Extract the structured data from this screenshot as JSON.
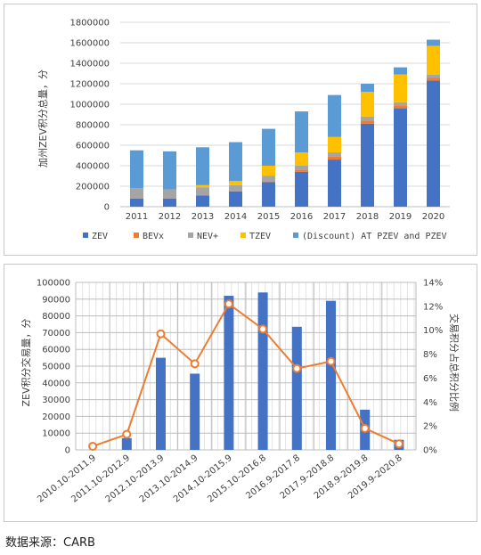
{
  "colors": {
    "zev": "#4472c4",
    "bevx": "#ed7d31",
    "nev": "#a5a5a5",
    "tzev": "#ffc000",
    "discount": "#5b9bd5",
    "trade_bar": "#4472c4",
    "trade_line": "#ed7d31",
    "grid": "#d9d9d9"
  },
  "chart_data": [
    {
      "type": "bar",
      "stacked": true,
      "ylabel": "加州ZEV积分总量，分",
      "categories": [
        "2011",
        "2012",
        "2013",
        "2014",
        "2015",
        "2016",
        "2017",
        "2018",
        "2019",
        "2020"
      ],
      "yticks": [
        "0",
        "200000",
        "400000",
        "600000",
        "800000",
        "1000000",
        "1200000",
        "1400000",
        "1600000",
        "1800000"
      ],
      "ylim": [
        0,
        1800000
      ],
      "series": [
        {
          "name": "ZEV",
          "color_key": "zev",
          "values": [
            80000,
            80000,
            110000,
            150000,
            240000,
            340000,
            460000,
            810000,
            960000,
            1230000
          ]
        },
        {
          "name": "BEVx",
          "color_key": "bevx",
          "values": [
            0,
            0,
            0,
            0,
            10000,
            20000,
            30000,
            30000,
            30000,
            30000
          ]
        },
        {
          "name": "NEV+",
          "color_key": "nev",
          "values": [
            100000,
            90000,
            80000,
            60000,
            50000,
            40000,
            40000,
            40000,
            30000,
            30000
          ]
        },
        {
          "name": "TZEV",
          "color_key": "tzev",
          "values": [
            0,
            0,
            20000,
            40000,
            100000,
            130000,
            150000,
            240000,
            270000,
            280000
          ]
        },
        {
          "name": "(Discount) AT PZEV and PZEV",
          "color_key": "discount",
          "values": [
            370000,
            370000,
            370000,
            380000,
            360000,
            400000,
            410000,
            80000,
            70000,
            60000
          ]
        }
      ],
      "legend_position": "bottom",
      "grid": "horizontal"
    },
    {
      "type": "bar+line",
      "ylabel": "ZEV积分交易量，分",
      "y2label": "交易积分占总积分比例",
      "categories": [
        "2010.10-2011.9",
        "2011.10-2012.9",
        "2012.10-2013.9",
        "2013.10-2014.9",
        "2014.10-2015.9",
        "2015.10-2016.8",
        "2016.9-2017.8",
        "2017.9-2018.8",
        "2018.9-2019.8",
        "2019.9-2020.8"
      ],
      "yticks": [
        "0",
        "10000",
        "20000",
        "30000",
        "40000",
        "50000",
        "60000",
        "70000",
        "80000",
        "90000",
        "100000"
      ],
      "ylim": [
        0,
        100000
      ],
      "y2ticks": [
        "0%",
        "2%",
        "4%",
        "6%",
        "8%",
        "10%",
        "12%",
        "14%"
      ],
      "y2lim": [
        0,
        0.14
      ],
      "bar_values": [
        0,
        7000,
        55000,
        45500,
        92000,
        94000,
        73500,
        89000,
        24000,
        6000
      ],
      "line_values": [
        0.003,
        0.013,
        0.097,
        0.072,
        0.122,
        0.101,
        0.068,
        0.074,
        0.018,
        0.005
      ],
      "grid": "vertical-and-horizontal"
    }
  ],
  "source": "数据来源：CARB"
}
